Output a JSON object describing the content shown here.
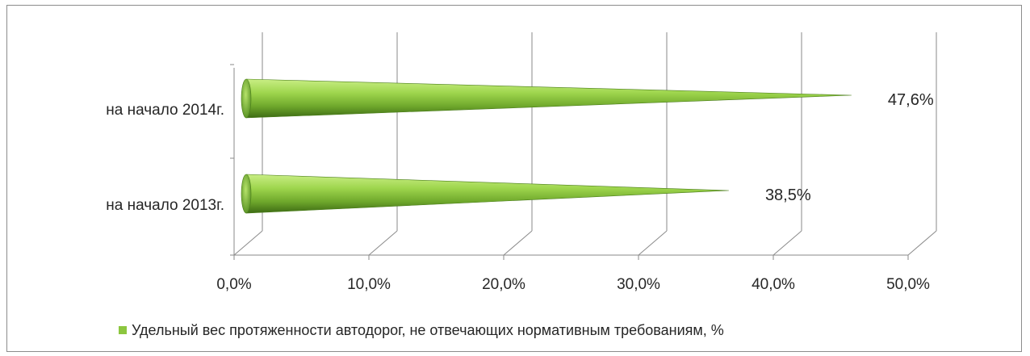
{
  "chart_data": {
    "type": "bar",
    "orientation": "horizontal",
    "style": "3d-cone",
    "categories": [
      "на начало 2014г.",
      "на начало 2013г."
    ],
    "series": [
      {
        "name": "Удельный вес протяженности  автодорог, не отвечающих нормативным требованиям, %",
        "values": [
          47.6,
          38.5
        ],
        "data_labels": [
          "47,6%",
          "38,5%"
        ],
        "color": "#8cc63f"
      }
    ],
    "xlim": [
      0,
      50
    ],
    "x_ticks": [
      0,
      10,
      20,
      30,
      40,
      50
    ],
    "x_tick_labels": [
      "0,0%",
      "10,0%",
      "20,0%",
      "30,0%",
      "40,0%",
      "50,0%"
    ],
    "grid": true,
    "legend_position": "bottom"
  },
  "colors": {
    "bar_light": "#b6e36a",
    "bar_mid": "#8cc63f",
    "bar_dark": "#3d6b14",
    "legend_marker": "#8cc63f",
    "grid": "#8a8a8a"
  }
}
